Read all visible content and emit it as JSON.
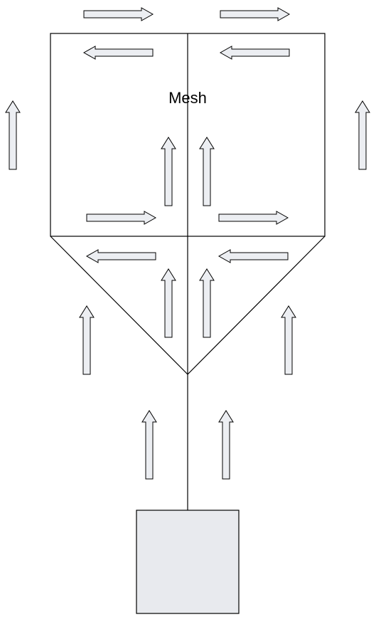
{
  "diagram": {
    "label": "Mesh",
    "colors": {
      "arrow_fill": "#eceef2",
      "box_fill": "#e8eaee",
      "stroke": "#000000",
      "background": "#ffffff"
    }
  }
}
